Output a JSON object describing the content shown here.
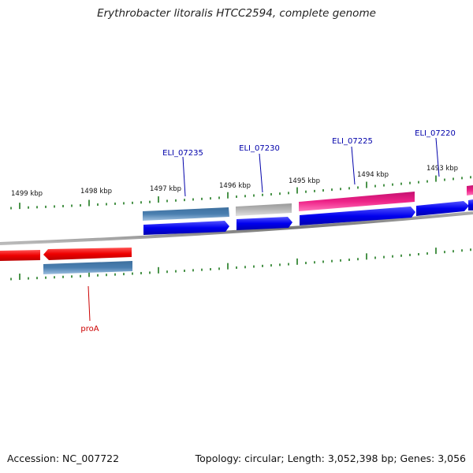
{
  "title": "Erythrobacter litoralis HTCC2594, complete genome",
  "footer": {
    "accession": "Accession: NC_007722",
    "topology": "Topology: circular; Length: 3,052,398 bp; Genes: 3,056"
  },
  "scale_ticks": [
    "1499 kbp",
    "1498 kbp",
    "1497 kbp",
    "1496 kbp",
    "1495 kbp",
    "1494 kbp",
    "1493 kbp"
  ],
  "gene_labels": [
    {
      "text": "ELI_07235",
      "color": "#0000aa"
    },
    {
      "text": "ELI_07230",
      "color": "#0000aa"
    },
    {
      "text": "ELI_07225",
      "color": "#0000aa"
    },
    {
      "text": "ELI_07220",
      "color": "#0000aa"
    },
    {
      "text": "proA",
      "color": "#cc0000"
    }
  ],
  "colors": {
    "backbone": "#888888",
    "tick": "#1e7a1e",
    "blue": "#0000ee",
    "steelblue": "#4a7fb0",
    "gray": "#b8b8b8",
    "pink": "#ee2288",
    "red": "#ee0000"
  }
}
